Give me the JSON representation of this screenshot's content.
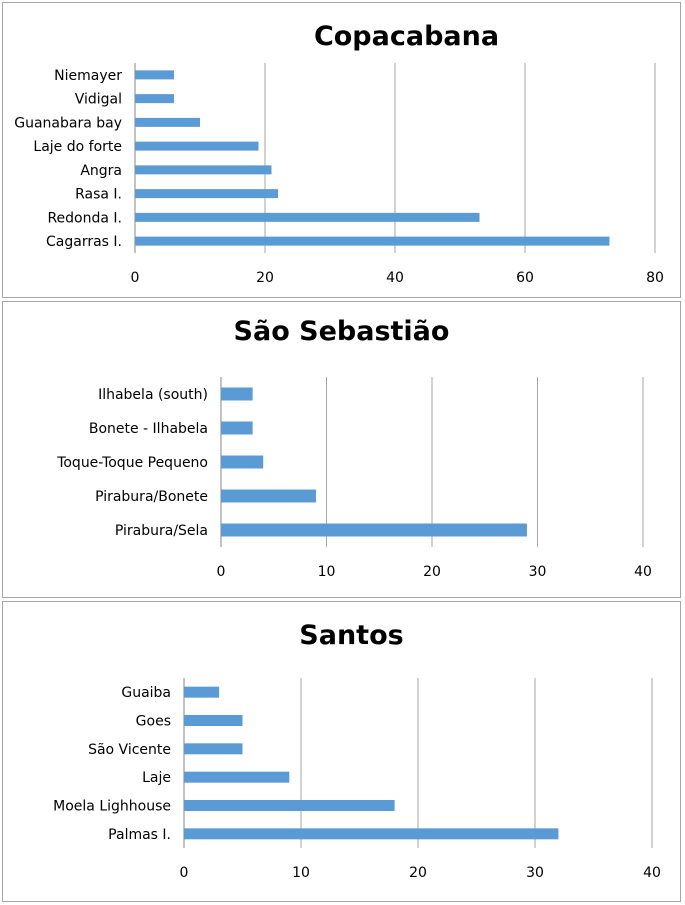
{
  "chart_data": [
    {
      "type": "bar",
      "orientation": "horizontal",
      "title": "Copacabana",
      "categories": [
        "Niemayer",
        "Vidigal",
        "Guanabara bay",
        "Laje do forte",
        "Angra",
        "Rasa I.",
        "Redonda I.",
        "Cagarras I."
      ],
      "values": [
        6,
        6,
        10,
        19,
        21,
        22,
        53,
        73
      ],
      "xlim": [
        0,
        80
      ],
      "xticks": [
        0,
        20,
        40,
        60,
        80
      ],
      "grid": "vertical",
      "bar_color": "#5b9bd5"
    },
    {
      "type": "bar",
      "orientation": "horizontal",
      "title": "São Sebastião",
      "categories": [
        "Ilhabela (south)",
        "Bonete - Ilhabela",
        "Toque-Toque Pequeno",
        "Pirabura/Bonete",
        "Pirabura/Sela"
      ],
      "values": [
        3,
        3,
        4,
        9,
        29
      ],
      "xlim": [
        0,
        40
      ],
      "xticks": [
        0,
        10,
        20,
        30,
        40
      ],
      "grid": "vertical",
      "bar_color": "#5b9bd5"
    },
    {
      "type": "bar",
      "orientation": "horizontal",
      "title": "Santos",
      "categories": [
        "Guaiba",
        "Goes",
        "São Vicente",
        "Laje",
        "Moela Lighhouse",
        "Palmas I."
      ],
      "values": [
        3,
        5,
        5,
        9,
        18,
        32
      ],
      "xlim": [
        0,
        40
      ],
      "xticks": [
        0,
        10,
        20,
        30,
        40
      ],
      "grid": "vertical",
      "bar_color": "#5b9bd5"
    }
  ]
}
